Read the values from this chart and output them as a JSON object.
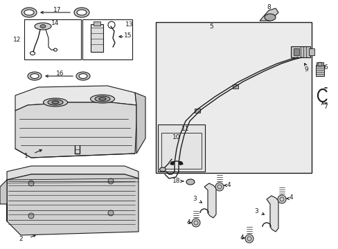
{
  "bg_color": "#ffffff",
  "line_color": "#1a1a1a",
  "gray_fill": "#d8d8d8",
  "light_gray": "#ebebeb",
  "fig_width": 4.89,
  "fig_height": 3.6,
  "dpi": 100,
  "parts": {
    "17_label": "17",
    "16_label": "16",
    "14_label": "14",
    "15_label": "15",
    "13_label": "13",
    "12_label": "12",
    "1_label": "1",
    "2_label": "2",
    "5_label": "5",
    "8_label": "8",
    "9_label": "9",
    "6_label": "6",
    "7_label": "7",
    "10_label": "10",
    "11_label": "11",
    "18_label": "18",
    "3_label": "3",
    "4_label": "4"
  }
}
